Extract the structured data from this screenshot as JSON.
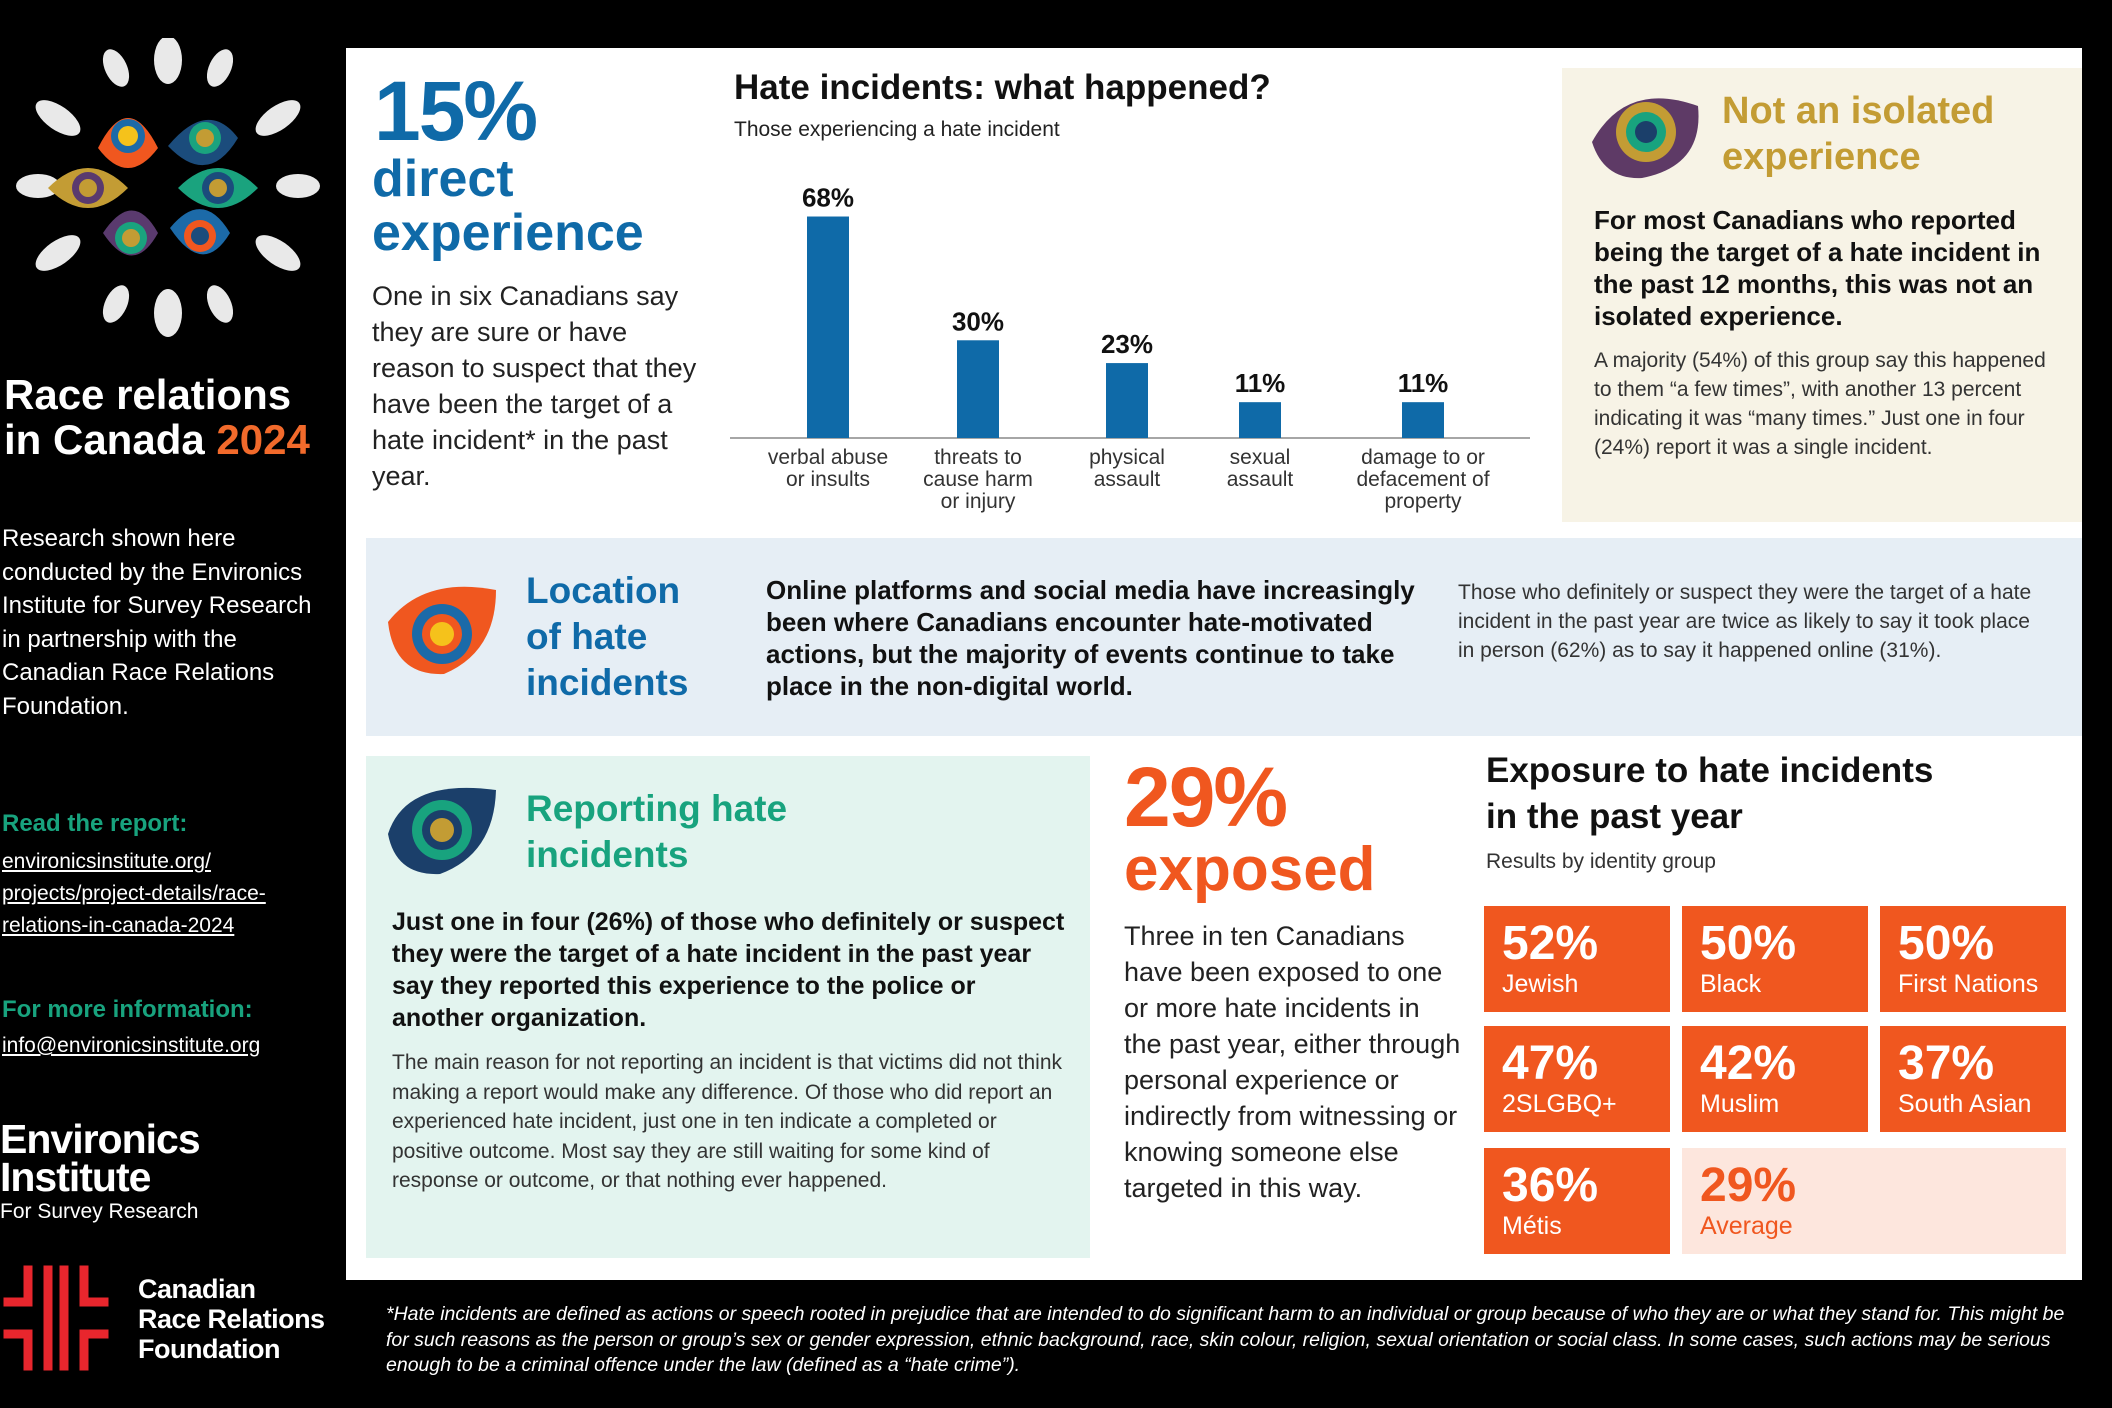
{
  "sidebar": {
    "title_line1": "Race relations",
    "title_line2": "in Canada",
    "title_year": "2024",
    "description": "Research shown here conducted by the Environics Institute for Survey Research in partnership with the Canadian Race Relations Foundation.",
    "read_report_label": "Read the report:",
    "report_link_1": "environicsinstitute.org/",
    "report_link_2": "projects/project-details/race-",
    "report_link_3": "relations-in-canada-2024",
    "more_info_label": "For more information:",
    "email": "info@environicsinstitute.org",
    "environics_line1": "Environics",
    "environics_line2": "Institute",
    "environics_sub": "For Survey Research",
    "crrf_line1": "Canadian",
    "crrf_line2": "Race Relations",
    "crrf_line3": "Foundation"
  },
  "direct": {
    "percent": "15%",
    "label_line1": "direct",
    "label_line2": "experience",
    "body": "One in six Canadians say they are sure or have reason to suspect that they have been the target of a hate incident* in the past year."
  },
  "chart_data": {
    "type": "bar",
    "title": "Hate incidents: what happened?",
    "subtitle": "Those experiencing a hate incident",
    "categories": [
      [
        "verbal abuse",
        "or insults"
      ],
      [
        "threats to",
        "cause harm",
        "or injury"
      ],
      [
        "physical",
        "assault"
      ],
      [
        "sexual",
        "assault"
      ],
      [
        "damage to or",
        "defacement of",
        "property"
      ]
    ],
    "values": [
      68,
      30,
      23,
      11,
      11
    ],
    "value_labels": [
      "68%",
      "30%",
      "23%",
      "11%",
      "11%"
    ],
    "ylim": [
      0,
      70
    ],
    "bar_color": "#0f6aa8",
    "grid": false
  },
  "isolated": {
    "title_line1": "Not an isolated",
    "title_line2": "experience",
    "lead": "For most Canadians who reported being the target of a hate incident in the past 12 months, this was not an isolated experience.",
    "body": "A majority (54%) of this group say this happened to them “a few times”, with another 13 percent indicating it was “many times.” Just one in four (24%) report it was a single incident."
  },
  "location": {
    "title_line1": "Location",
    "title_line2": "of hate",
    "title_line3": "incidents",
    "lead": "Online platforms and social media have increasingly been where Canadians encounter hate-motivated actions, but the majority of events continue to take place in the non-digital world.",
    "body": "Those who definitely or suspect they were the target of a hate incident in the past year are twice as likely to say it took place in person (62%) as to say it happened online (31%)."
  },
  "reporting": {
    "title_line1": "Reporting hate",
    "title_line2": "incidents",
    "lead": "Just one in four (26%) of those who definitely or suspect they were the target of a hate incident in the past year say they reported this experience to the police or another organization.",
    "body": "The main reason for not reporting an incident is that victims did not think making a report would make any difference. Of those who did report an experienced hate incident, just one in ten indicate a completed or positive outcome. Most say they are still waiting for some kind of response or outcome, or that nothing ever happened."
  },
  "exposed": {
    "percent": "29%",
    "label": "exposed",
    "body": "Three in ten Canadians have been exposed to one or more hate incidents in the past year, either through personal experience or indirectly from witnessing or knowing someone else targeted in this way."
  },
  "exposure": {
    "title_line1": "Exposure to hate incidents",
    "title_line2": "in the past year",
    "subtitle": "Results by identity group",
    "groups": [
      {
        "percent": "52%",
        "label": "Jewish"
      },
      {
        "percent": "50%",
        "label": "Black"
      },
      {
        "percent": "50%",
        "label": "First Nations"
      },
      {
        "percent": "47%",
        "label": "2SLGBQ+"
      },
      {
        "percent": "42%",
        "label": "Muslim"
      },
      {
        "percent": "37%",
        "label": "South Asian"
      },
      {
        "percent": "36%",
        "label": "Métis"
      },
      {
        "percent": "29%",
        "label": "Average"
      }
    ]
  },
  "footnote": "*Hate incidents are defined as actions or speech rooted in prejudice that are intended to do significant harm to an individual or group because of who they are or what they stand for. This might be for such reasons as the person or group’s sex or gender expression, ethnic background, race, skin colour, religion, sexual orientation or social class. In some cases, such actions may be serious enough to be a criminal offence under the law (defined as a “hate crime”).",
  "icons": [
    "flower-logo-icon",
    "eye-icon",
    "crrf-logo-icon"
  ]
}
